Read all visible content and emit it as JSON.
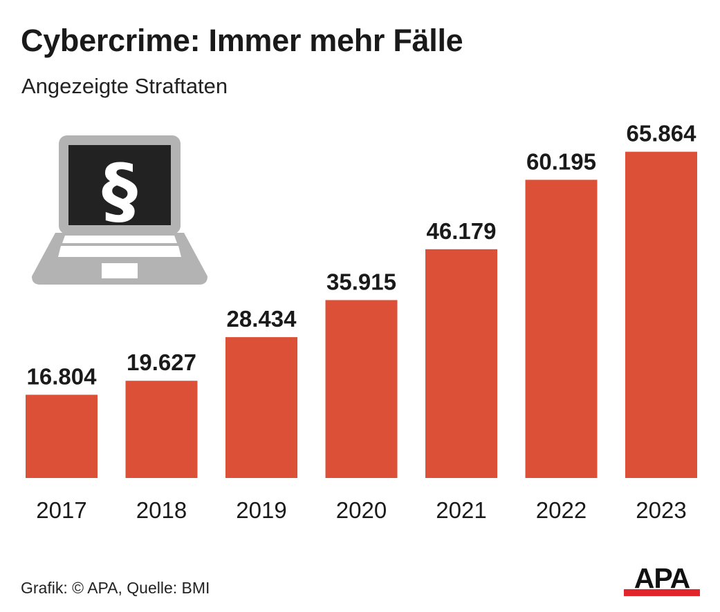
{
  "header": {
    "title": "Cybercrime: Immer mehr Fälle",
    "subtitle": "Angezeigte Straftaten"
  },
  "illustration": {
    "icon": "laptop-icon",
    "screen_symbol": "§"
  },
  "chart_data": {
    "type": "bar",
    "title": "Cybercrime: Immer mehr Fälle",
    "subtitle": "Angezeigte Straftaten",
    "categories": [
      "2017",
      "2018",
      "2019",
      "2020",
      "2021",
      "2022",
      "2023"
    ],
    "values": [
      16804,
      19627,
      28434,
      35915,
      46179,
      60195,
      65864
    ],
    "value_labels": [
      "16.804",
      "19.627",
      "28.434",
      "35.915",
      "46.179",
      "60.195",
      "65.864"
    ],
    "ylim": [
      0,
      70000
    ],
    "grid": false,
    "bar_color": "#dc5038",
    "xlabel": "",
    "ylabel": ""
  },
  "footer": {
    "source": "Grafik: © APA, Quelle: BMI"
  },
  "logo": {
    "text": "APA",
    "underline_color": "#e2242b"
  }
}
